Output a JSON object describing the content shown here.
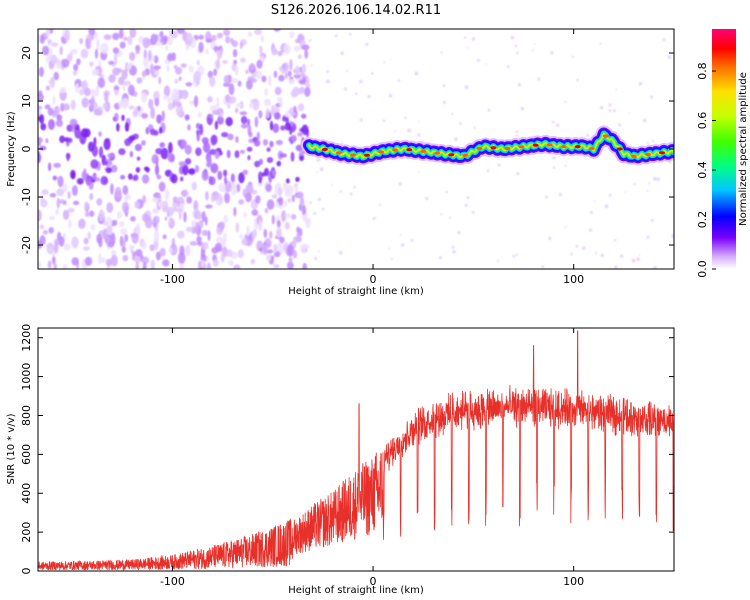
{
  "title": "S126.2026.106.14.02.R11",
  "chart_data": [
    {
      "type": "heatmap",
      "name": "spectrogram",
      "xlabel": "Height of straight line (km)",
      "ylabel": "Frequency (Hz)",
      "xlim": [
        -167,
        150
      ],
      "ylim": [
        -25,
        25
      ],
      "xticks": [
        -100,
        0,
        100
      ],
      "yticks": [
        -20,
        -10,
        0,
        10,
        20
      ],
      "ridge_start_km": -32,
      "ridge_x": [
        -32,
        -25,
        -15,
        -5,
        5,
        15,
        25,
        35,
        45,
        55,
        65,
        75,
        85,
        95,
        105,
        110,
        115,
        120,
        125,
        130,
        140,
        150
      ],
      "ridge_f": [
        0.5,
        0,
        -1,
        -1.5,
        -0.5,
        0,
        -0.5,
        -1,
        -1.5,
        0.5,
        0,
        0.5,
        1,
        0.5,
        0.5,
        0,
        3,
        1.5,
        -1,
        -1.5,
        -1,
        -0.5
      ],
      "colorbar": {
        "label": "Normalized spectral amplitude",
        "ticks": [
          "0.0",
          "0.2",
          "0.4",
          "0.6",
          "0.8"
        ],
        "range": [
          0,
          0.97
        ]
      }
    },
    {
      "type": "line",
      "name": "snr",
      "xlabel": "Height of straight line (km)",
      "ylabel": "SNR (10 * v/v)",
      "xlim": [
        -167,
        150
      ],
      "ylim": [
        0,
        1250
      ],
      "xticks": [
        -100,
        0,
        100
      ],
      "yticks": [
        0,
        200,
        400,
        600,
        800,
        1000,
        1200
      ],
      "color": "#e8302a",
      "envelope_x": [
        -167,
        -140,
        -120,
        -100,
        -80,
        -60,
        -40,
        -30,
        -20,
        -10,
        0,
        10,
        20,
        30,
        40,
        50,
        60,
        70,
        80,
        90,
        100,
        110,
        120,
        130,
        140,
        150
      ],
      "envelope_y": [
        40,
        45,
        50,
        70,
        110,
        160,
        230,
        300,
        360,
        450,
        520,
        650,
        760,
        820,
        850,
        860,
        870,
        880,
        880,
        875,
        870,
        850,
        840,
        820,
        810,
        800
      ],
      "peaks": [
        {
          "x": -7,
          "y": 860
        },
        {
          "x": 80,
          "y": 1160
        },
        {
          "x": 102,
          "y": 1235
        }
      ]
    }
  ]
}
